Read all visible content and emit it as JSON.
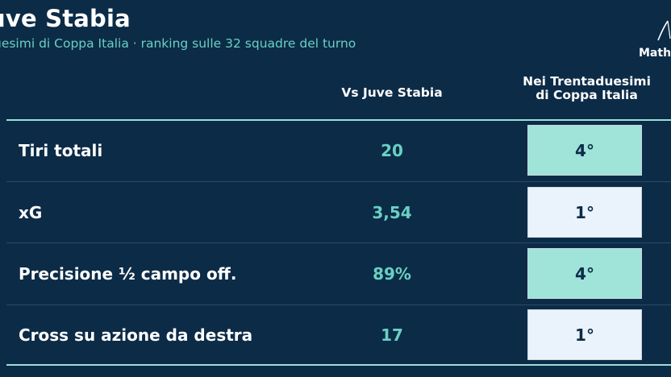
{
  "header": {
    "title": "uve Stabia",
    "subtitle": "uesimi di Coppa Italia · ranking sulle 32 squadre del turno",
    "logo_text": "Math"
  },
  "columns": {
    "vs": "Vs Juve Stabia",
    "rank_line1": "Nei Trentaduesimi",
    "rank_line2": "di Coppa Italia"
  },
  "colors": {
    "background": "#0c2b47",
    "accent": "#69d0c3",
    "rank_highlight": "#9fe3d9",
    "rank_plain": "#eaf3fb"
  },
  "rows": [
    {
      "label": "Tiri totali",
      "value": "20",
      "rank": "4°",
      "highlight": true
    },
    {
      "label": "xG",
      "value": "3,54",
      "rank": "1°",
      "highlight": false
    },
    {
      "label": "Precisione ½ campo off.",
      "value": "89%",
      "rank": "4°",
      "highlight": true
    },
    {
      "label": "Cross su azione da destra",
      "value": "17",
      "rank": "1°",
      "highlight": false
    }
  ]
}
